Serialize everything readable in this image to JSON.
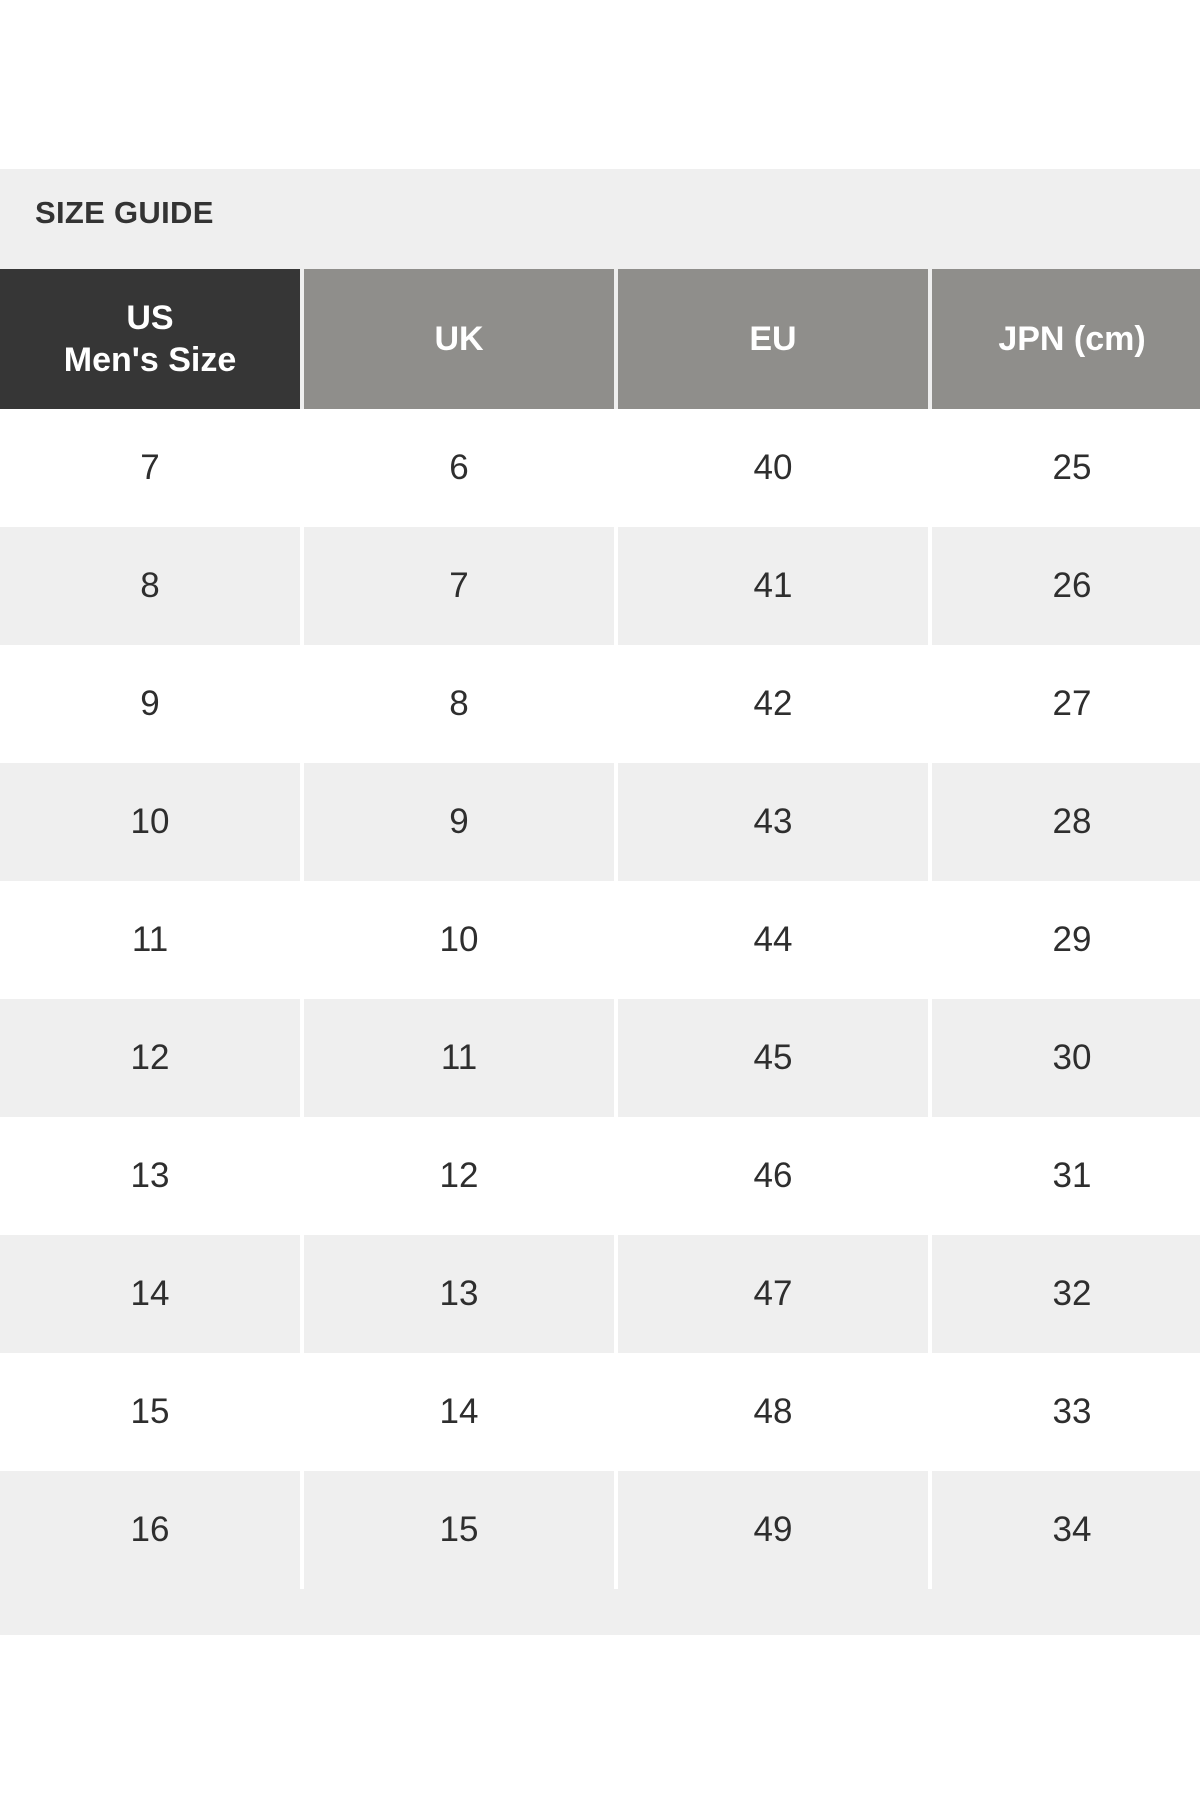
{
  "size_guide": {
    "title": "SIZE GUIDE",
    "columns": [
      {
        "line1": "US",
        "line2": "Men's Size"
      },
      {
        "line1": "UK"
      },
      {
        "line1": "EU"
      },
      {
        "line1": "JPN (cm)"
      }
    ],
    "rows": [
      [
        "7",
        "6",
        "40",
        "25"
      ],
      [
        "8",
        "7",
        "41",
        "26"
      ],
      [
        "9",
        "8",
        "42",
        "27"
      ],
      [
        "10",
        "9",
        "43",
        "28"
      ],
      [
        "11",
        "10",
        "44",
        "29"
      ],
      [
        "12",
        "11",
        "45",
        "30"
      ],
      [
        "13",
        "12",
        "46",
        "31"
      ],
      [
        "14",
        "13",
        "47",
        "32"
      ],
      [
        "15",
        "14",
        "48",
        "33"
      ],
      [
        "16",
        "15",
        "49",
        "34"
      ]
    ]
  },
  "colors": {
    "panel_bg": "#efefef",
    "header_primary": "#363636",
    "header_secondary": "#8f8e8b",
    "text": "#2e2e2e"
  }
}
